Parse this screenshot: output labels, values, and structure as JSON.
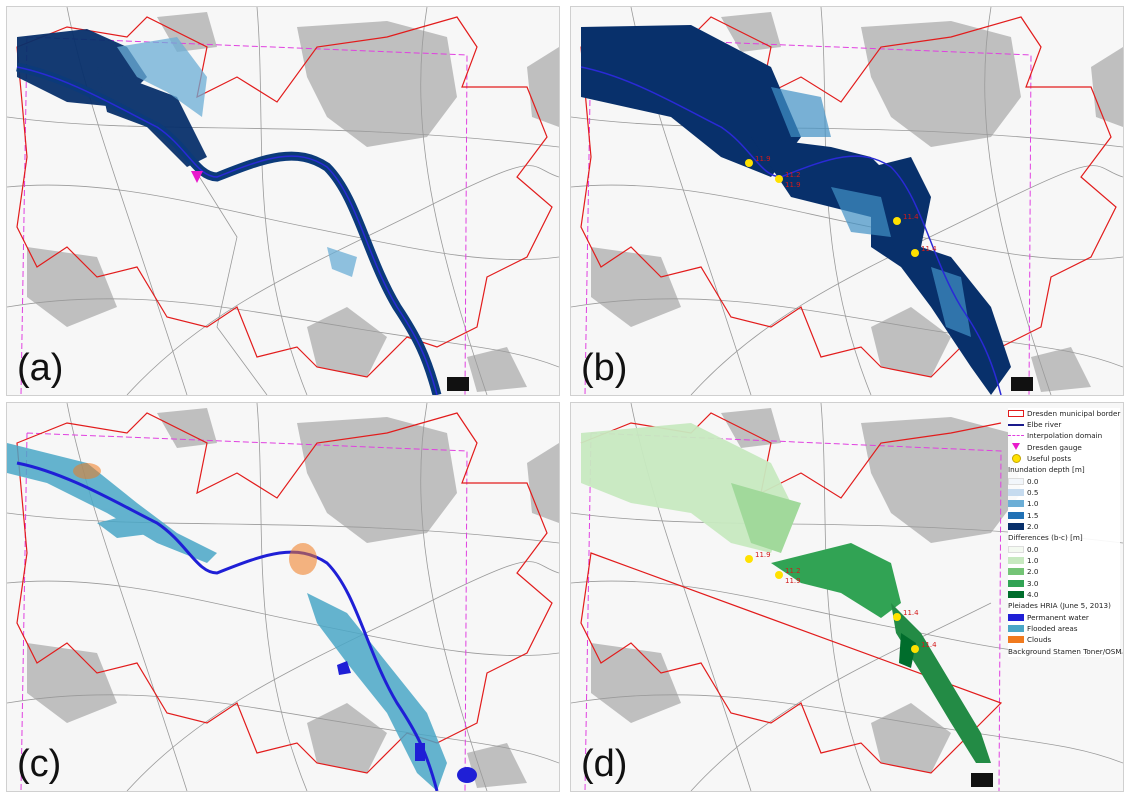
{
  "panels": [
    {
      "id": "a",
      "label": "(a)"
    },
    {
      "id": "b",
      "label": "(b)"
    },
    {
      "id": "c",
      "label": "(c)"
    },
    {
      "id": "d",
      "label": "(d)"
    }
  ],
  "useful_posts_b": [
    "11.9",
    "11.2",
    "11.9",
    "11.4",
    "11.4"
  ],
  "useful_posts_d": [
    "11.9",
    "11.2",
    "11.9",
    "11.4",
    "11.4"
  ],
  "legend": {
    "items_top": [
      {
        "label": "Dresden municipal border",
        "symbol": "red-outline-box"
      },
      {
        "label": "Elbe river",
        "symbol": "blue-line"
      },
      {
        "label": "Interpolation domain",
        "symbol": "magenta-dashed-line"
      },
      {
        "label": "Dresden gauge",
        "symbol": "magenta-triangle"
      },
      {
        "label": "Useful posts",
        "symbol": "yellow-dot"
      }
    ],
    "inundation": {
      "title": "Inundation depth [m]",
      "classes": [
        {
          "label": "0.0",
          "color": "#f2f6fb"
        },
        {
          "label": "0.5",
          "color": "#c6dbef"
        },
        {
          "label": "1.0",
          "color": "#6baed6"
        },
        {
          "label": "1.5",
          "color": "#2171b5"
        },
        {
          "label": "2.0",
          "color": "#08306b"
        }
      ]
    },
    "differences": {
      "title": "Differences (b-c) [m]",
      "classes": [
        {
          "label": "0.0",
          "color": "#f4faf1"
        },
        {
          "label": "1.0",
          "color": "#c7e9c0"
        },
        {
          "label": "2.0",
          "color": "#74c476"
        },
        {
          "label": "3.0",
          "color": "#31a354"
        },
        {
          "label": "4.0",
          "color": "#006d2c"
        }
      ]
    },
    "pleiades": {
      "title": "Pleiades HRIA (June 5, 2013)",
      "classes": [
        {
          "label": "Permanent water",
          "color": "#1f1fd6"
        },
        {
          "label": "Flooded areas",
          "color": "#4aa7c7"
        },
        {
          "label": "Clouds",
          "color": "#f07a1e"
        }
      ]
    },
    "background_note": "Background Stamen Toner/OSM"
  },
  "colors": {
    "municipal_border": "#e21c1c",
    "elbe": "#1a1a8c",
    "domain": "#e040e0",
    "gauge": "#e81acb",
    "useful_post": "#ffe100",
    "urban_gray": "#bfbfbf"
  }
}
